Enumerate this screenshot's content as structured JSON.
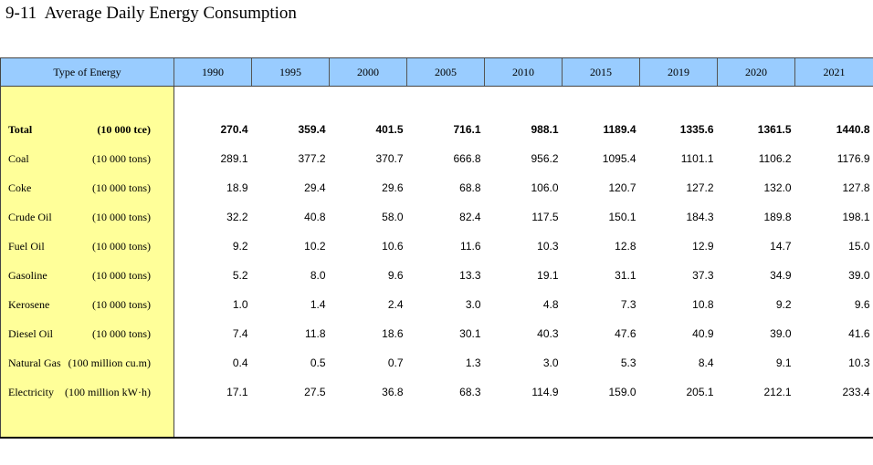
{
  "title": "9-11  Average Daily Energy Consumption",
  "header": {
    "type_label": "Type of Energy",
    "years": [
      "1990",
      "1995",
      "2000",
      "2005",
      "2010",
      "2015",
      "2019",
      "2020",
      "2021"
    ]
  },
  "rows": [
    {
      "name": "Total",
      "unit": "(10 000 tce)",
      "values": [
        "270.4",
        "359.4",
        "401.5",
        "716.1",
        "988.1",
        "1189.4",
        "1335.6",
        "1361.5",
        "1440.8"
      ]
    },
    {
      "name": "Coal",
      "unit": "(10 000 tons)",
      "values": [
        "289.1",
        "377.2",
        "370.7",
        "666.8",
        "956.2",
        "1095.4",
        "1101.1",
        "1106.2",
        "1176.9"
      ]
    },
    {
      "name": "Coke",
      "unit": "(10 000 tons)",
      "values": [
        "18.9",
        "29.4",
        "29.6",
        "68.8",
        "106.0",
        "120.7",
        "127.2",
        "132.0",
        "127.8"
      ]
    },
    {
      "name": "Crude Oil",
      "unit": "(10 000 tons)",
      "values": [
        "32.2",
        "40.8",
        "58.0",
        "82.4",
        "117.5",
        "150.1",
        "184.3",
        "189.8",
        "198.1"
      ]
    },
    {
      "name": "Fuel Oil",
      "unit": "(10 000 tons)",
      "values": [
        "9.2",
        "10.2",
        "10.6",
        "11.6",
        "10.3",
        "12.8",
        "12.9",
        "14.7",
        "15.0"
      ]
    },
    {
      "name": "Gasoline",
      "unit": "(10 000 tons)",
      "values": [
        "5.2",
        "8.0",
        "9.6",
        "13.3",
        "19.1",
        "31.1",
        "37.3",
        "34.9",
        "39.0"
      ]
    },
    {
      "name": "Kerosene",
      "unit": "(10 000 tons)",
      "values": [
        "1.0",
        "1.4",
        "2.4",
        "3.0",
        "4.8",
        "7.3",
        "10.8",
        "9.2",
        "9.6"
      ]
    },
    {
      "name": "Diesel Oil",
      "unit": "(10 000 tons)",
      "values": [
        "7.4",
        "11.8",
        "18.6",
        "30.1",
        "40.3",
        "47.6",
        "40.9",
        "39.0",
        "41.6"
      ]
    },
    {
      "name": "Natural Gas",
      "unit": "(100 million cu.m)",
      "values": [
        "0.4",
        "0.5",
        "0.7",
        "1.3",
        "3.0",
        "5.3",
        "8.4",
        "9.1",
        "10.3"
      ]
    },
    {
      "name": "Electricity",
      "unit": "(100 million kW·h)",
      "values": [
        "17.1",
        "27.5",
        "36.8",
        "68.3",
        "114.9",
        "159.0",
        "205.1",
        "212.1",
        "233.4"
      ]
    }
  ],
  "colors": {
    "header_bg": "#99ccff",
    "label_bg": "#ffff99"
  }
}
